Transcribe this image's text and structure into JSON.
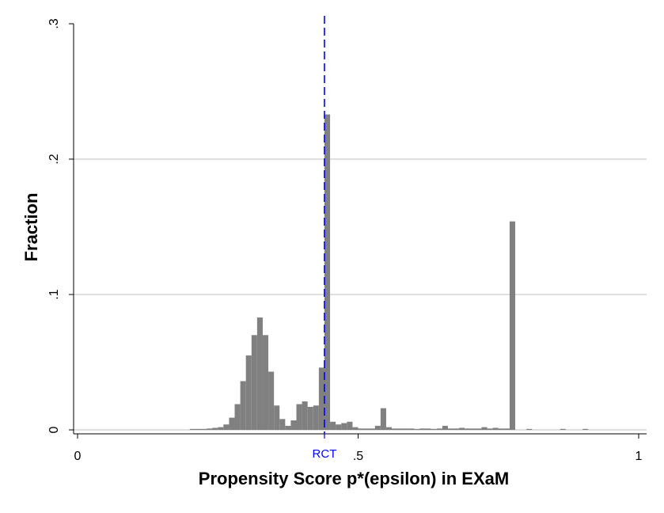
{
  "chart_data": {
    "type": "bar",
    "histogram": true,
    "xlabel": "Propensity Score p*(epsilon) in EXaM",
    "ylabel": "Fraction",
    "xlim": [
      0,
      1
    ],
    "ylim": [
      0,
      0.3
    ],
    "x_ticks": [
      {
        "value": 0,
        "label": "0"
      },
      {
        "value": 0.5,
        "label": ".5"
      },
      {
        "value": 1,
        "label": "1"
      }
    ],
    "y_ticks": [
      {
        "value": 0,
        "label": "0"
      },
      {
        "value": 0.1,
        "label": ".1"
      },
      {
        "value": 0.2,
        "label": ".2"
      },
      {
        "value": 0.3,
        "label": ".3"
      }
    ],
    "grid": "horizontal",
    "bin_width": 0.01,
    "bars": [
      {
        "x": 0.205,
        "y": 0.0005
      },
      {
        "x": 0.215,
        "y": 0.0005
      },
      {
        "x": 0.225,
        "y": 0.0005
      },
      {
        "x": 0.235,
        "y": 0.001
      },
      {
        "x": 0.245,
        "y": 0.0015
      },
      {
        "x": 0.255,
        "y": 0.002
      },
      {
        "x": 0.265,
        "y": 0.004
      },
      {
        "x": 0.275,
        "y": 0.009
      },
      {
        "x": 0.285,
        "y": 0.019
      },
      {
        "x": 0.295,
        "y": 0.036
      },
      {
        "x": 0.305,
        "y": 0.055
      },
      {
        "x": 0.315,
        "y": 0.07
      },
      {
        "x": 0.325,
        "y": 0.083
      },
      {
        "x": 0.335,
        "y": 0.07
      },
      {
        "x": 0.345,
        "y": 0.043
      },
      {
        "x": 0.355,
        "y": 0.018
      },
      {
        "x": 0.365,
        "y": 0.008
      },
      {
        "x": 0.375,
        "y": 0.003
      },
      {
        "x": 0.385,
        "y": 0.007
      },
      {
        "x": 0.395,
        "y": 0.019
      },
      {
        "x": 0.405,
        "y": 0.021
      },
      {
        "x": 0.415,
        "y": 0.017
      },
      {
        "x": 0.425,
        "y": 0.018
      },
      {
        "x": 0.435,
        "y": 0.046
      },
      {
        "x": 0.445,
        "y": 0.233
      },
      {
        "x": 0.455,
        "y": 0.006
      },
      {
        "x": 0.465,
        "y": 0.004
      },
      {
        "x": 0.475,
        "y": 0.005
      },
      {
        "x": 0.485,
        "y": 0.006
      },
      {
        "x": 0.495,
        "y": 0.002
      },
      {
        "x": 0.505,
        "y": 0.001
      },
      {
        "x": 0.515,
        "y": 0.001
      },
      {
        "x": 0.525,
        "y": 0.001
      },
      {
        "x": 0.535,
        "y": 0.003
      },
      {
        "x": 0.545,
        "y": 0.016
      },
      {
        "x": 0.555,
        "y": 0.002
      },
      {
        "x": 0.565,
        "y": 0.001
      },
      {
        "x": 0.575,
        "y": 0.001
      },
      {
        "x": 0.585,
        "y": 0.001
      },
      {
        "x": 0.595,
        "y": 0.001
      },
      {
        "x": 0.605,
        "y": 0.0005
      },
      {
        "x": 0.615,
        "y": 0.001
      },
      {
        "x": 0.625,
        "y": 0.001
      },
      {
        "x": 0.635,
        "y": 0.0005
      },
      {
        "x": 0.645,
        "y": 0.001
      },
      {
        "x": 0.655,
        "y": 0.003
      },
      {
        "x": 0.665,
        "y": 0.001
      },
      {
        "x": 0.675,
        "y": 0.001
      },
      {
        "x": 0.685,
        "y": 0.0015
      },
      {
        "x": 0.695,
        "y": 0.001
      },
      {
        "x": 0.705,
        "y": 0.001
      },
      {
        "x": 0.715,
        "y": 0.001
      },
      {
        "x": 0.725,
        "y": 0.002
      },
      {
        "x": 0.735,
        "y": 0.001
      },
      {
        "x": 0.745,
        "y": 0.0015
      },
      {
        "x": 0.755,
        "y": 0.001
      },
      {
        "x": 0.765,
        "y": 0.001
      },
      {
        "x": 0.775,
        "y": 0.154
      },
      {
        "x": 0.805,
        "y": 0.0005
      },
      {
        "x": 0.865,
        "y": 0.0005
      },
      {
        "x": 0.905,
        "y": 0.0005
      }
    ],
    "reference_line": {
      "x": 0.44,
      "label": "RCT",
      "color": "#0000ff",
      "style": "dashed"
    },
    "bar_color": "#808080",
    "grid_color": "#bfbfbf"
  }
}
